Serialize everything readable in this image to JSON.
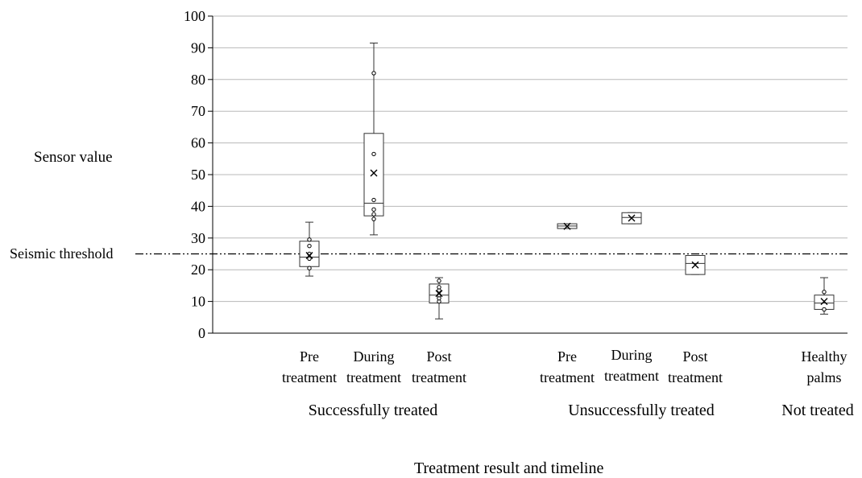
{
  "chart_data": {
    "type": "box",
    "ylabel": "Sensor value",
    "xlabel": "Treatment result and timeline",
    "ylim": [
      0,
      100
    ],
    "yticks": [
      0,
      10,
      20,
      30,
      40,
      50,
      60,
      70,
      80,
      90,
      100
    ],
    "grid": "horizontal",
    "threshold": {
      "label": "Seismic threshold",
      "value": 25
    },
    "groups": [
      {
        "label": "Successfully treated",
        "categories": [
          0,
          1,
          2
        ]
      },
      {
        "label": "Unsuccessfully treated",
        "categories": [
          3,
          4,
          5
        ]
      },
      {
        "label": "Not treated",
        "categories": [
          6
        ]
      }
    ],
    "categories": [
      {
        "line1": "Pre",
        "line2": "treatment",
        "min": 18,
        "q1": 21,
        "median": 24,
        "q3": 29,
        "max": 35,
        "mean": 24.5,
        "points": [
          20.5,
          23.5,
          25,
          27.5,
          29.5
        ]
      },
      {
        "line1": "During",
        "line2": "treatment",
        "min": 31,
        "q1": 37,
        "median": 41,
        "q3": 63,
        "max": 91.5,
        "mean": 50.5,
        "points": [
          36,
          37.5,
          39,
          42,
          56.5,
          82
        ]
      },
      {
        "line1": "Post",
        "line2": "treatment",
        "min": 4.5,
        "q1": 9.5,
        "median": 12,
        "q3": 15.5,
        "max": 17.5,
        "mean": 12.5,
        "points": [
          10,
          11,
          12,
          13.5,
          14.5,
          16.5
        ]
      },
      {
        "line1": "Pre",
        "line2": "treatment",
        "min": 33,
        "q1": 33,
        "median": 33.8,
        "q3": 34.5,
        "max": 34.5,
        "mean": 33.7,
        "points": []
      },
      {
        "line1": "During",
        "line2": "treatment",
        "min": 34.5,
        "q1": 34.5,
        "median": 36.5,
        "q3": 38,
        "max": 38,
        "mean": 36.3,
        "points": []
      },
      {
        "line1": "Post",
        "line2": "treatment",
        "min": 18.5,
        "q1": 18.5,
        "median": 22,
        "q3": 24.5,
        "max": 24.5,
        "mean": 21.5,
        "points": []
      },
      {
        "line1": "Healthy",
        "line2": "palms",
        "min": 6,
        "q1": 7.5,
        "median": 9.5,
        "q3": 12,
        "max": 17.5,
        "mean": 10,
        "points": [
          7.5,
          13
        ]
      }
    ]
  }
}
